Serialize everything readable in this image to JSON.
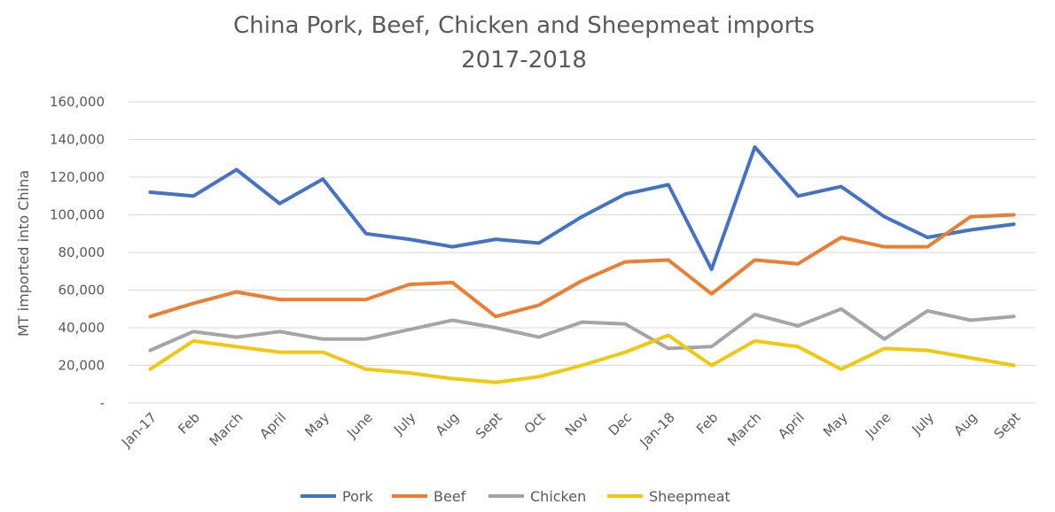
{
  "chart_data": {
    "type": "line",
    "title_line1": "China Pork, Beef, Chicken and Sheepmeat imports",
    "title_line2": "2017-2018",
    "ylabel": "MT imported into China",
    "xlabel": "",
    "ylim": [
      0,
      160000
    ],
    "yticks": [
      "-",
      "20,000",
      "40,000",
      "60,000",
      "80,000",
      "100,000",
      "120,000",
      "140,000",
      "160,000"
    ],
    "grid": true,
    "legend_position": "bottom",
    "categories": [
      "Jan-17",
      "Feb",
      "March",
      "April",
      "May",
      "June",
      "July",
      "Aug",
      "Sept",
      "Oct",
      "Nov",
      "Dec",
      "Jan-18",
      "Feb",
      "March",
      "April",
      "May",
      "June",
      "July",
      "Aug",
      "Sept"
    ],
    "series": [
      {
        "name": "Pork",
        "color": "#4472C4",
        "values": [
          112000,
          110000,
          124000,
          106000,
          119000,
          90000,
          87000,
          83000,
          87000,
          85000,
          99000,
          111000,
          116000,
          71000,
          136000,
          110000,
          115000,
          99000,
          88000,
          92000,
          95000
        ]
      },
      {
        "name": "Beef",
        "color": "#ED7D31",
        "values": [
          46000,
          53000,
          59000,
          55000,
          55000,
          55000,
          63000,
          64000,
          46000,
          52000,
          65000,
          75000,
          76000,
          58000,
          76000,
          74000,
          88000,
          83000,
          83000,
          99000,
          100000
        ]
      },
      {
        "name": "Chicken",
        "color": "#A5A5A5",
        "values": [
          28000,
          38000,
          35000,
          38000,
          34000,
          34000,
          39000,
          44000,
          40000,
          35000,
          43000,
          42000,
          29000,
          30000,
          47000,
          41000,
          50000,
          34000,
          49000,
          44000,
          46000
        ]
      },
      {
        "name": "Sheepmeat",
        "color": "#F2C80F",
        "values": [
          18000,
          33000,
          30000,
          27000,
          27000,
          18000,
          16000,
          13000,
          11000,
          14000,
          20000,
          27000,
          36000,
          20000,
          33000,
          30000,
          18000,
          29000,
          28000,
          24000,
          20000
        ]
      }
    ]
  }
}
